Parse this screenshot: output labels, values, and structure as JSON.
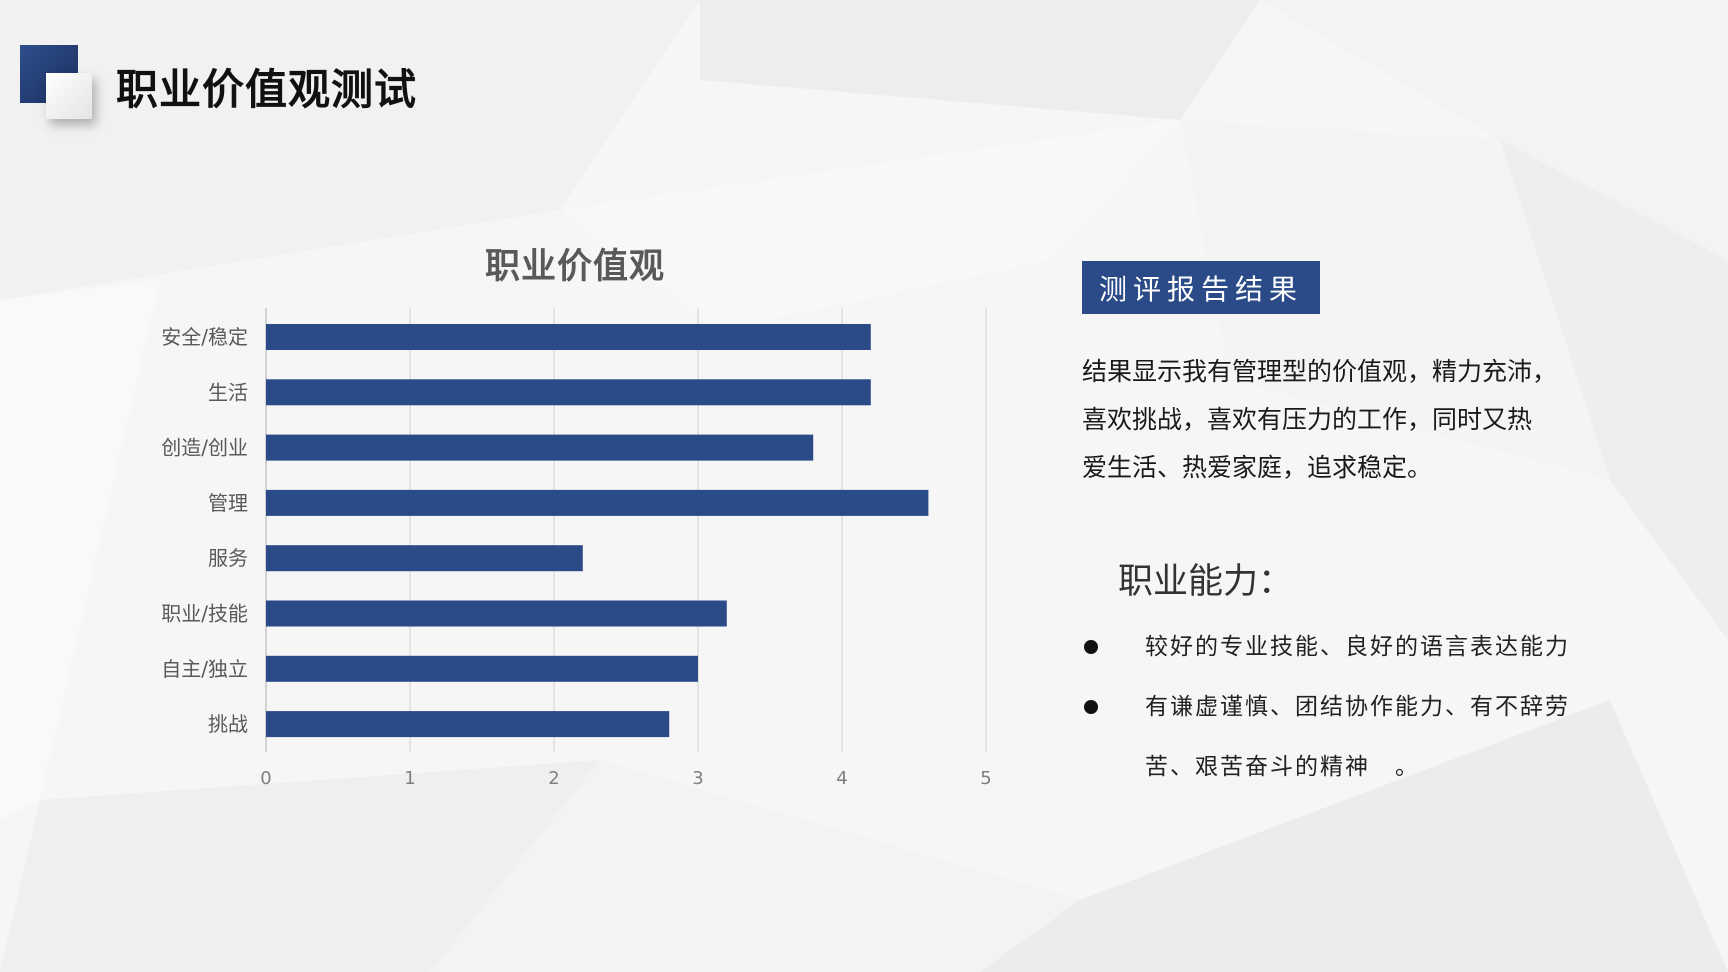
{
  "page": {
    "title": "职业价值观测试"
  },
  "chart_data": {
    "type": "bar",
    "orientation": "horizontal",
    "title": "职业价值观",
    "categories": [
      "安全/稳定",
      "生活",
      "创造/创业",
      "管理",
      "服务",
      "职业/技能",
      "自主/独立",
      "挑战"
    ],
    "values": [
      4.2,
      4.2,
      3.8,
      4.6,
      2.2,
      3.2,
      3.0,
      2.8
    ],
    "xlim": [
      0,
      5
    ],
    "xticks": [
      "0",
      "1",
      "2",
      "3",
      "4",
      "5"
    ],
    "grid": true,
    "bar_color": "#2a4a88"
  },
  "report": {
    "badge": "测评报告结果",
    "result_lines": [
      "结果显示我有管理型的价值观，精力充沛，",
      "喜欢挑战，喜欢有压力的工作，同时又热",
      "爱生活、热爱家庭，追求稳定。"
    ]
  },
  "ability": {
    "heading": "职业能力：",
    "items": [
      [
        "较好的专业技能、良好的语言表达能力"
      ],
      [
        "有谦虚谨慎、团结协作能力、有不辞劳",
        "苦、艰苦奋斗的精神　。"
      ]
    ]
  },
  "colors": {
    "accent": "#2a4a88",
    "title_text": "#111111",
    "chart_title": "#595959",
    "background": "#f6f6f7"
  }
}
